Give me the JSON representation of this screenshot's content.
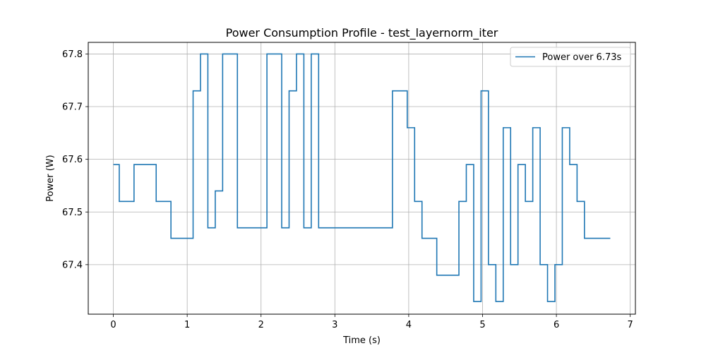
{
  "chart_data": {
    "type": "line",
    "title": "Power Consumption Profile - test_layernorm_iter",
    "xlabel": "Time (s)",
    "ylabel": "Power (W)",
    "xlim": [
      -0.34,
      7.07
    ],
    "ylim": [
      67.306,
      67.822
    ],
    "xticks": [
      0,
      1,
      2,
      3,
      4,
      5,
      6,
      7
    ],
    "xtick_labels": [
      "0",
      "1",
      "2",
      "3",
      "4",
      "5",
      "6",
      "7"
    ],
    "yticks": [
      67.4,
      67.5,
      67.6,
      67.7,
      67.8
    ],
    "ytick_labels": [
      "67.4",
      "67.5",
      "67.6",
      "67.7",
      "67.8"
    ],
    "grid": true,
    "legend_position": "upper right",
    "step": "post",
    "series": [
      {
        "name": "Power over 6.73s",
        "color": "#1f77b4",
        "x": [
          0.0,
          0.08,
          0.28,
          0.58,
          0.78,
          1.08,
          1.18,
          1.28,
          1.38,
          1.48,
          1.68,
          2.08,
          2.28,
          2.38,
          2.48,
          2.58,
          2.68,
          2.78,
          3.78,
          3.98,
          4.08,
          4.18,
          4.38,
          4.68,
          4.78,
          4.88,
          4.98,
          5.08,
          5.18,
          5.28,
          5.38,
          5.48,
          5.58,
          5.68,
          5.78,
          5.88,
          5.98,
          6.08,
          6.18,
          6.28,
          6.38,
          6.73
        ],
        "y": [
          67.59,
          67.52,
          67.59,
          67.52,
          67.45,
          67.73,
          67.8,
          67.47,
          67.54,
          67.8,
          67.47,
          67.8,
          67.47,
          67.73,
          67.8,
          67.47,
          67.8,
          67.47,
          67.73,
          67.66,
          67.52,
          67.45,
          67.38,
          67.52,
          67.59,
          67.33,
          67.73,
          67.4,
          67.33,
          67.66,
          67.4,
          67.59,
          67.52,
          67.66,
          67.4,
          67.33,
          67.4,
          67.66,
          67.59,
          67.52,
          67.45,
          67.45
        ]
      }
    ]
  }
}
